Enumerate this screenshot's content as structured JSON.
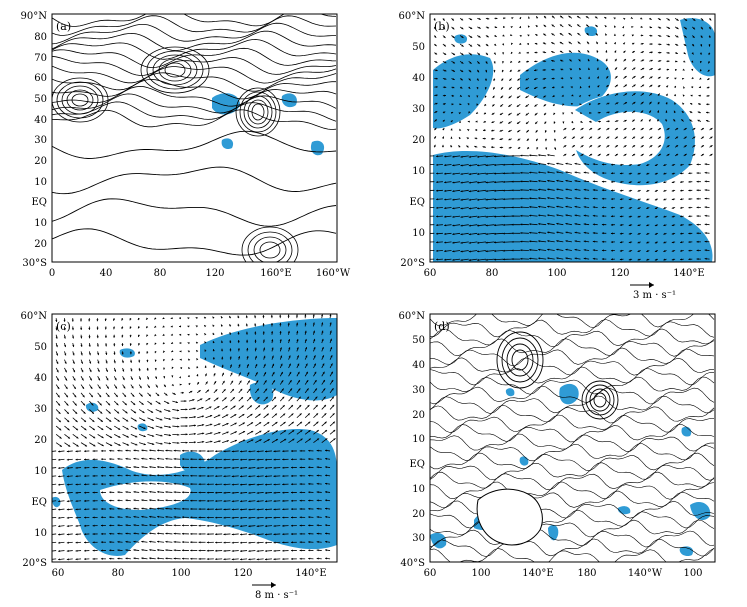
{
  "colors": {
    "shade": "#2f9bd5",
    "line": "#000000",
    "background": "#ffffff"
  },
  "panels": [
    {
      "id": "a",
      "label": "(a)",
      "y_ticks": [
        "90°N",
        "80",
        "70",
        "60",
        "50",
        "40",
        "30",
        "20",
        "10",
        "EQ",
        "10",
        "20",
        "30°S"
      ],
      "x_ticks": [
        "0",
        "40",
        "80",
        "120",
        "160°E",
        "160°W"
      ]
    },
    {
      "id": "b",
      "label": "(b)",
      "y_ticks": [
        "60°N",
        "50",
        "40",
        "30",
        "20",
        "10",
        "EQ",
        "10",
        "20°S"
      ],
      "x_ticks": [
        "60",
        "80",
        "100",
        "120",
        "140°E"
      ],
      "reference_vector": "3 m · s⁻¹"
    },
    {
      "id": "c",
      "label": "(c)",
      "y_ticks": [
        "60°N",
        "50",
        "40",
        "30",
        "20",
        "10",
        "EQ",
        "10",
        "20°S"
      ],
      "x_ticks": [
        "60",
        "80",
        "100",
        "120",
        "140°E"
      ],
      "reference_vector": "8 m · s⁻¹"
    },
    {
      "id": "d",
      "label": "(d)",
      "y_ticks": [
        "60°N",
        "50",
        "40",
        "30",
        "20",
        "10",
        "EQ",
        "10",
        "20",
        "30",
        "40°S"
      ],
      "x_ticks": [
        "60",
        "100",
        "140°E",
        "180",
        "140°W",
        "100"
      ]
    }
  ]
}
